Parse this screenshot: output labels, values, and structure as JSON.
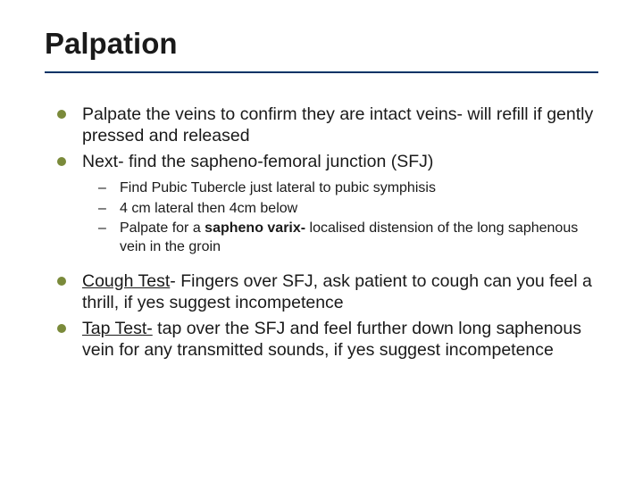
{
  "slide": {
    "title": "Palpation",
    "title_fontsize": 33,
    "title_color": "#1a1a1a",
    "underline_color": "#003366",
    "background_color": "#ffffff",
    "body_fontsize": 19.5,
    "sub_fontsize": 16,
    "bullet_color": "#7a8a3a",
    "text_color": "#1a1a1a",
    "items": [
      {
        "text": "Palpate the veins to confirm they are intact veins- will refill if gently pressed and released"
      },
      {
        "text": "Next- find the sapheno-femoral junction (SFJ)",
        "sub": [
          {
            "text": "Find Pubic Tubercle just lateral to pubic symphisis"
          },
          {
            "text": "4 cm lateral then 4cm below"
          },
          {
            "prefix": "Palpate for a ",
            "bold": "sapheno varix-",
            "suffix": " localised distension of the long saphenous vein in the groin"
          }
        ]
      },
      {
        "underline": "Cough Test",
        "suffix": "- Fingers over SFJ, ask patient to cough can you feel a thrill, if yes suggest incompetence"
      },
      {
        "underline": "Tap Test-",
        "suffix": " tap over the SFJ and feel further down long saphenous vein for any transmitted sounds, if yes suggest incompetence"
      }
    ]
  }
}
